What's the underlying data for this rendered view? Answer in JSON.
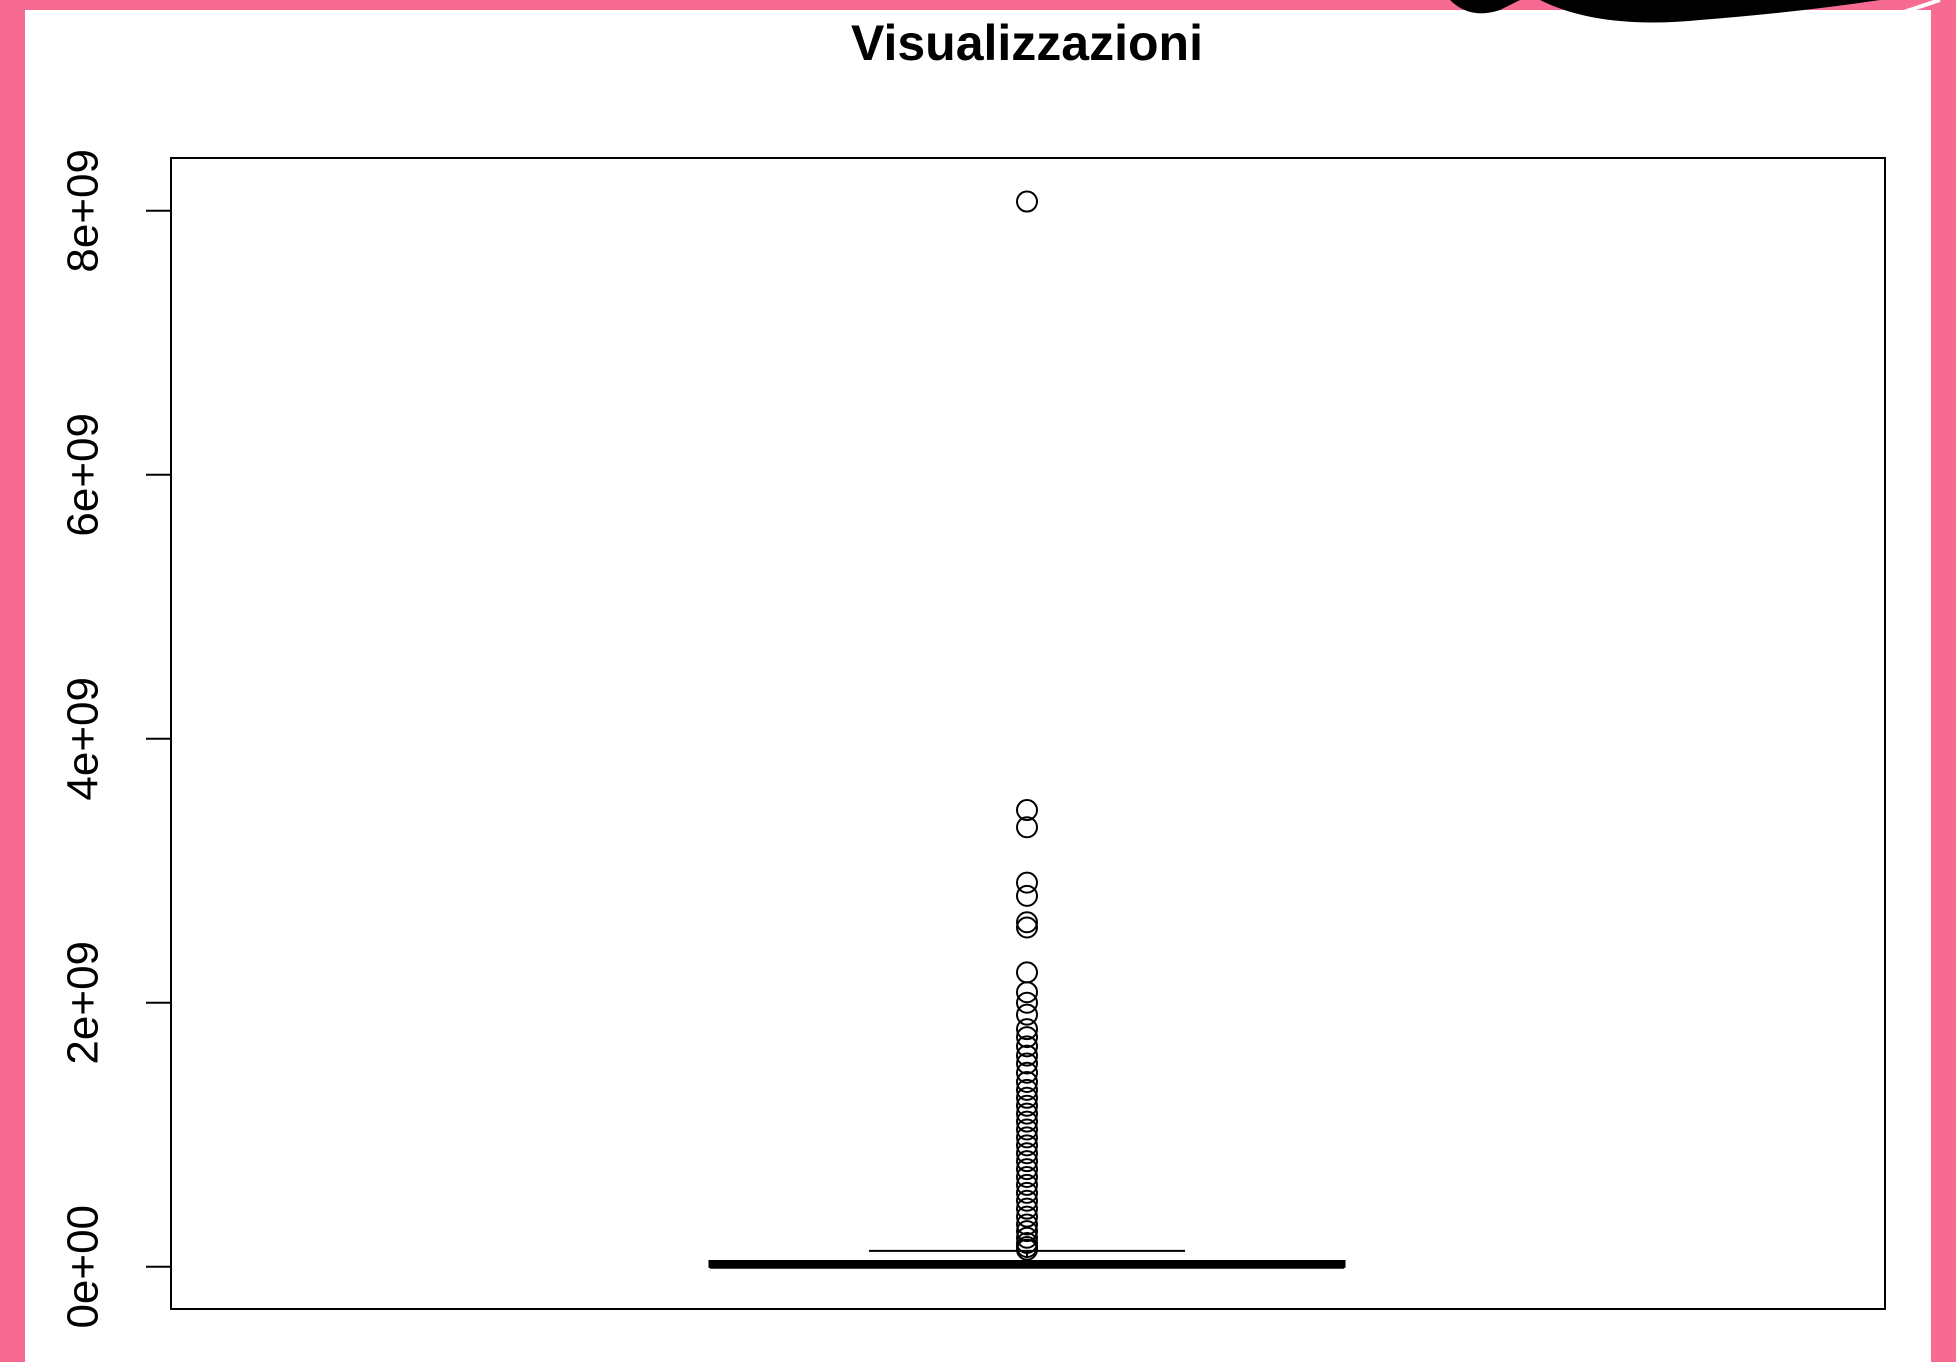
{
  "chart_data": {
    "type": "box",
    "title": "Visualizzazioni",
    "ylim": [
      -320000000,
      8400000000
    ],
    "yticks": [
      {
        "value": 0,
        "label": "0e+00"
      },
      {
        "value": 2000000000,
        "label": "2e+09"
      },
      {
        "value": 4000000000,
        "label": "4e+09"
      },
      {
        "value": 6000000000,
        "label": "6e+09"
      },
      {
        "value": 8000000000,
        "label": "8e+09"
      }
    ],
    "min": 0,
    "q1": 3000000,
    "median": 15000000,
    "q3": 40000000,
    "max": 120000000,
    "outliers": [
      8070000000,
      3460000000,
      3330000000,
      2910000000,
      2810000000,
      2610000000,
      2570000000,
      2230000000,
      2080000000,
      2000000000,
      1910000000,
      1800000000,
      1740000000,
      1670000000,
      1600000000,
      1540000000,
      1470000000,
      1400000000,
      1340000000,
      1280000000,
      1220000000,
      1160000000,
      1100000000,
      1040000000,
      980000000,
      920000000,
      860000000,
      800000000,
      740000000,
      680000000,
      620000000,
      560000000,
      500000000,
      440000000,
      380000000,
      320000000,
      270000000,
      220000000,
      180000000,
      150000000,
      130000000
    ]
  }
}
